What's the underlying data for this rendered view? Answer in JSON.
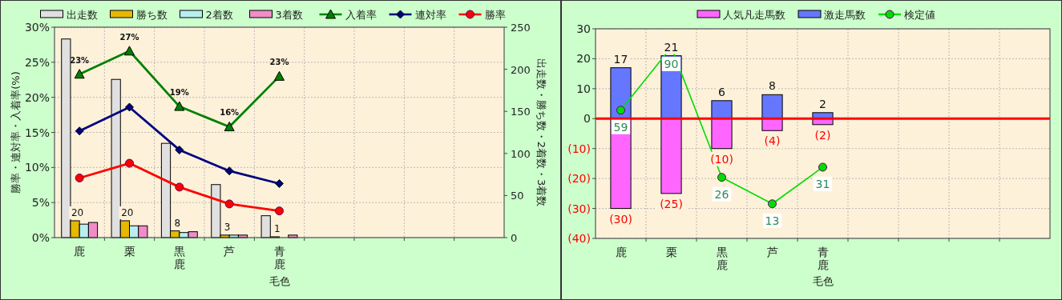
{
  "chart_data": [
    {
      "type": "bar",
      "xlabel": "毛色",
      "ylabel": "勝率・連対率・入着率(%)",
      "y2label": "出走数・勝ち数・2着数・3着数",
      "categories": [
        "鹿",
        "栗",
        "黒鹿",
        "芦",
        "青鹿",
        null,
        null,
        null,
        null
      ],
      "ylim": [
        0,
        30
      ],
      "yticks": [
        {
          "value": 0,
          "label": "0%"
        },
        {
          "value": 5,
          "label": "5%"
        },
        {
          "value": 10,
          "label": "10%"
        },
        {
          "value": 15,
          "label": "15%"
        },
        {
          "value": 20,
          "label": "20%"
        },
        {
          "value": 25,
          "label": "25%"
        },
        {
          "value": 30,
          "label": "30%"
        }
      ],
      "y2lim": [
        0,
        250
      ],
      "y2ticks": [
        0,
        50,
        100,
        150,
        200,
        250
      ],
      "grid": true,
      "legend": "top",
      "series": [
        {
          "name": "出走数",
          "axis": "y2",
          "color": "#e0e0e0",
          "values": [
            236,
            188,
            112,
            63,
            26,
            null,
            null,
            null,
            null
          ]
        },
        {
          "name": "勝ち数",
          "axis": "y2",
          "color": "#e6b800",
          "values": [
            20,
            20,
            8,
            3,
            1,
            null,
            null,
            null,
            null
          ],
          "value_labels": [
            "20",
            "20",
            "8",
            "3",
            "1",
            null,
            null,
            null,
            null
          ]
        },
        {
          "name": "2着数",
          "axis": "y2",
          "color": "#b8eef0",
          "values": [
            16,
            14,
            6,
            3,
            0,
            null,
            null,
            null,
            null
          ]
        },
        {
          "name": "3着数",
          "axis": "y2",
          "color": "#f08cc8",
          "values": [
            18,
            14,
            7,
            3,
            3,
            null,
            null,
            null,
            null
          ]
        },
        {
          "name": "入着率",
          "type": "line",
          "axis": "y",
          "color": "#008000",
          "marker": "triangle",
          "values": [
            23.3,
            26.6,
            18.7,
            15.8,
            23.0,
            null,
            null,
            null,
            null
          ],
          "value_labels": [
            "23%",
            "27%",
            "19%",
            "16%",
            "23%",
            null,
            null,
            null,
            null
          ]
        },
        {
          "name": "連対率",
          "type": "line",
          "axis": "y",
          "color": "#000080",
          "marker": "diamond",
          "values": [
            15.2,
            18.6,
            12.5,
            9.5,
            7.7,
            null,
            null,
            null,
            null
          ]
        },
        {
          "name": "勝率",
          "type": "line",
          "axis": "y",
          "color": "#ff0000",
          "marker": "circle",
          "values": [
            8.5,
            10.6,
            7.2,
            4.8,
            3.8,
            null,
            null,
            null,
            null
          ]
        }
      ]
    },
    {
      "type": "bar",
      "stacked": true,
      "xlabel": "毛色",
      "categories": [
        "鹿",
        "栗",
        "黒鹿",
        "芦",
        "青鹿",
        null,
        null,
        null,
        null
      ],
      "ylim": [
        -40,
        30
      ],
      "yticks": [
        {
          "value": -40,
          "label": "(40)"
        },
        {
          "value": -30,
          "label": "(30)"
        },
        {
          "value": -20,
          "label": "(20)"
        },
        {
          "value": -10,
          "label": "(10)"
        },
        0,
        10,
        20,
        30
      ],
      "y2lim": [
        -4,
        99
      ],
      "grid": true,
      "legend": "top",
      "ref_lines": [
        {
          "axis": "y",
          "value": 0,
          "color": "#ff0000"
        }
      ],
      "series": [
        {
          "name": "人気凡走馬数",
          "color": "#ff66ff",
          "values": [
            -30,
            -25,
            -10,
            -4,
            -2,
            null,
            null,
            null,
            null
          ],
          "value_labels": [
            "(30)",
            "(25)",
            "(10)",
            "(4)",
            "(2)",
            null,
            null,
            null,
            null
          ]
        },
        {
          "name": "激走馬数",
          "color": "#6677ff",
          "values": [
            17,
            21,
            6,
            8,
            2,
            null,
            null,
            null,
            null
          ],
          "value_labels": [
            "17",
            "21",
            "6",
            "8",
            "2",
            null,
            null,
            null,
            null
          ]
        },
        {
          "name": "検定値",
          "type": "line",
          "axis": "y2",
          "color": "#00dd00",
          "marker": "circle",
          "values": [
            59,
            90,
            26,
            13,
            31,
            null,
            null,
            null,
            null
          ],
          "value_labels": [
            "59",
            "90",
            "26",
            "13",
            "31",
            null,
            null,
            null,
            null
          ]
        }
      ]
    }
  ]
}
